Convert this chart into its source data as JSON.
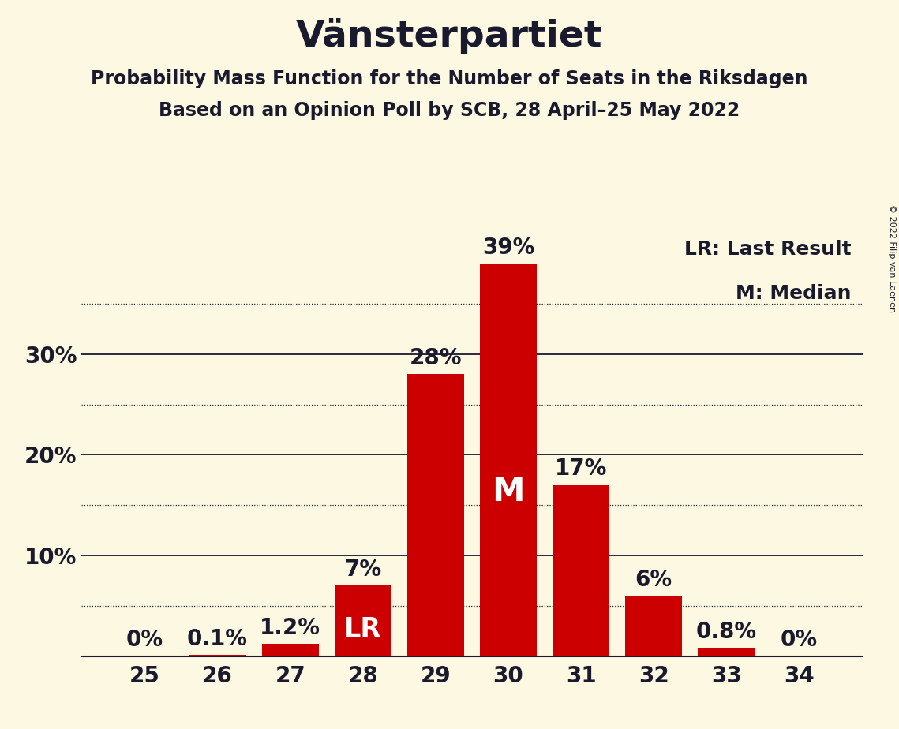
{
  "title": "Vänsterpartiet",
  "subtitle1": "Probability Mass Function for the Number of Seats in the Riksdagen",
  "subtitle2": "Based on an Opinion Poll by SCB, 28 April–25 May 2022",
  "copyright": "© 2022 Filip van Laenen",
  "categories": [
    25,
    26,
    27,
    28,
    29,
    30,
    31,
    32,
    33,
    34
  ],
  "values": [
    0.0,
    0.1,
    1.2,
    7.0,
    28.0,
    39.0,
    17.0,
    6.0,
    0.8,
    0.0
  ],
  "labels": [
    "0%",
    "0.1%",
    "1.2%",
    "7%",
    "28%",
    "39%",
    "17%",
    "6%",
    "0.8%",
    "0%"
  ],
  "bar_color": "#cc0000",
  "background_color": "#fdf8e1",
  "text_color": "#1a1a2e",
  "lr_index": 3,
  "median_index": 5,
  "lr_label": "LR",
  "median_label": "M",
  "legend_lr": "LR: Last Result",
  "legend_m": "M: Median",
  "ylim_max": 42,
  "major_yticks": [
    10,
    20,
    30
  ],
  "minor_yticks": [
    5,
    15,
    25,
    35
  ],
  "title_fontsize": 34,
  "subtitle_fontsize": 17,
  "tick_fontsize": 20,
  "bar_label_fontsize": 20,
  "inside_label_fontsize": 24,
  "legend_fontsize": 18,
  "copyright_fontsize": 8
}
